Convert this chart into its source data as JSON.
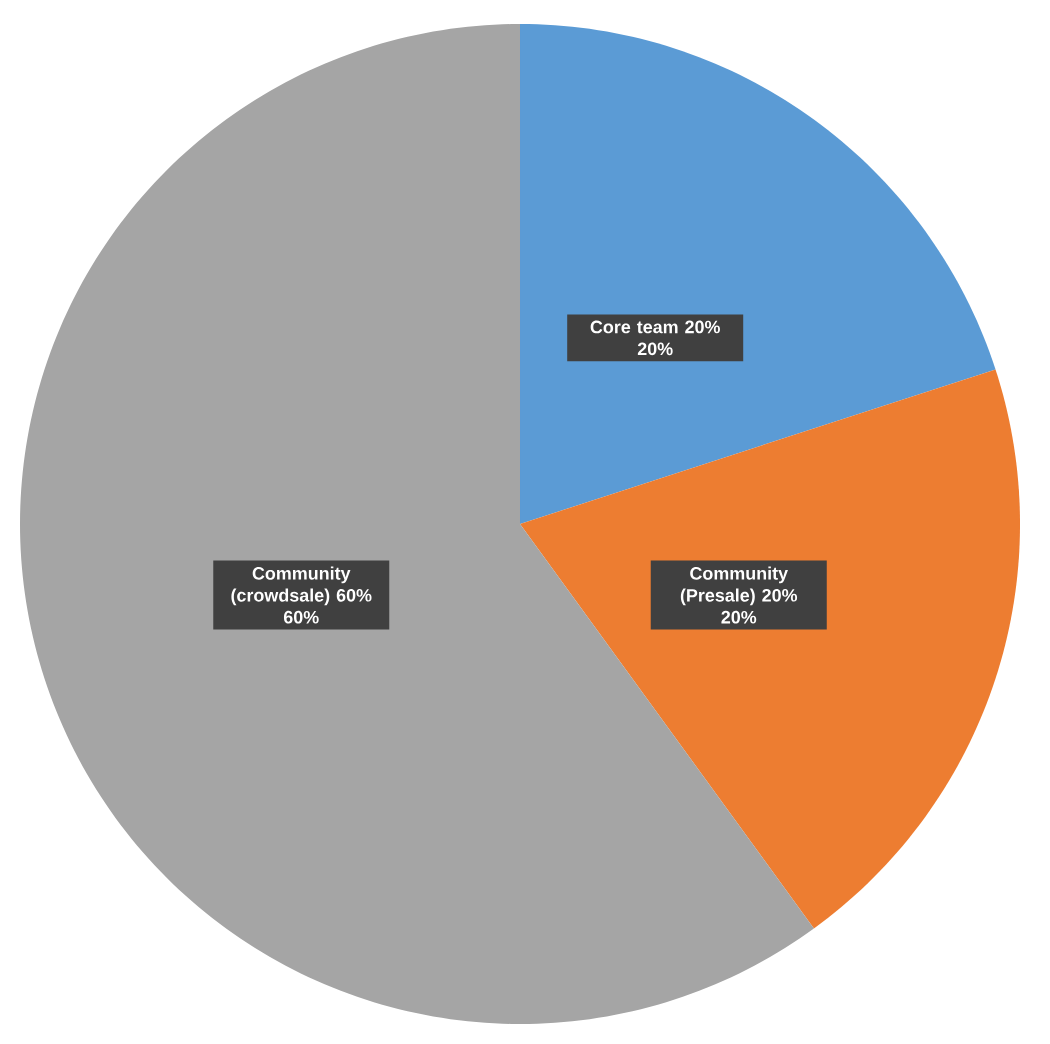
{
  "chart_data": {
    "type": "pie",
    "categories": [
      "Core team 20%",
      "Community (Presale) 20%",
      "Community (crowdsale) 60%"
    ],
    "values": [
      20,
      20,
      60
    ],
    "value_labels": [
      "20%",
      "20%",
      "60%"
    ],
    "colors": [
      "#5b9bd5",
      "#ed7d31",
      "#a5a5a5"
    ]
  }
}
